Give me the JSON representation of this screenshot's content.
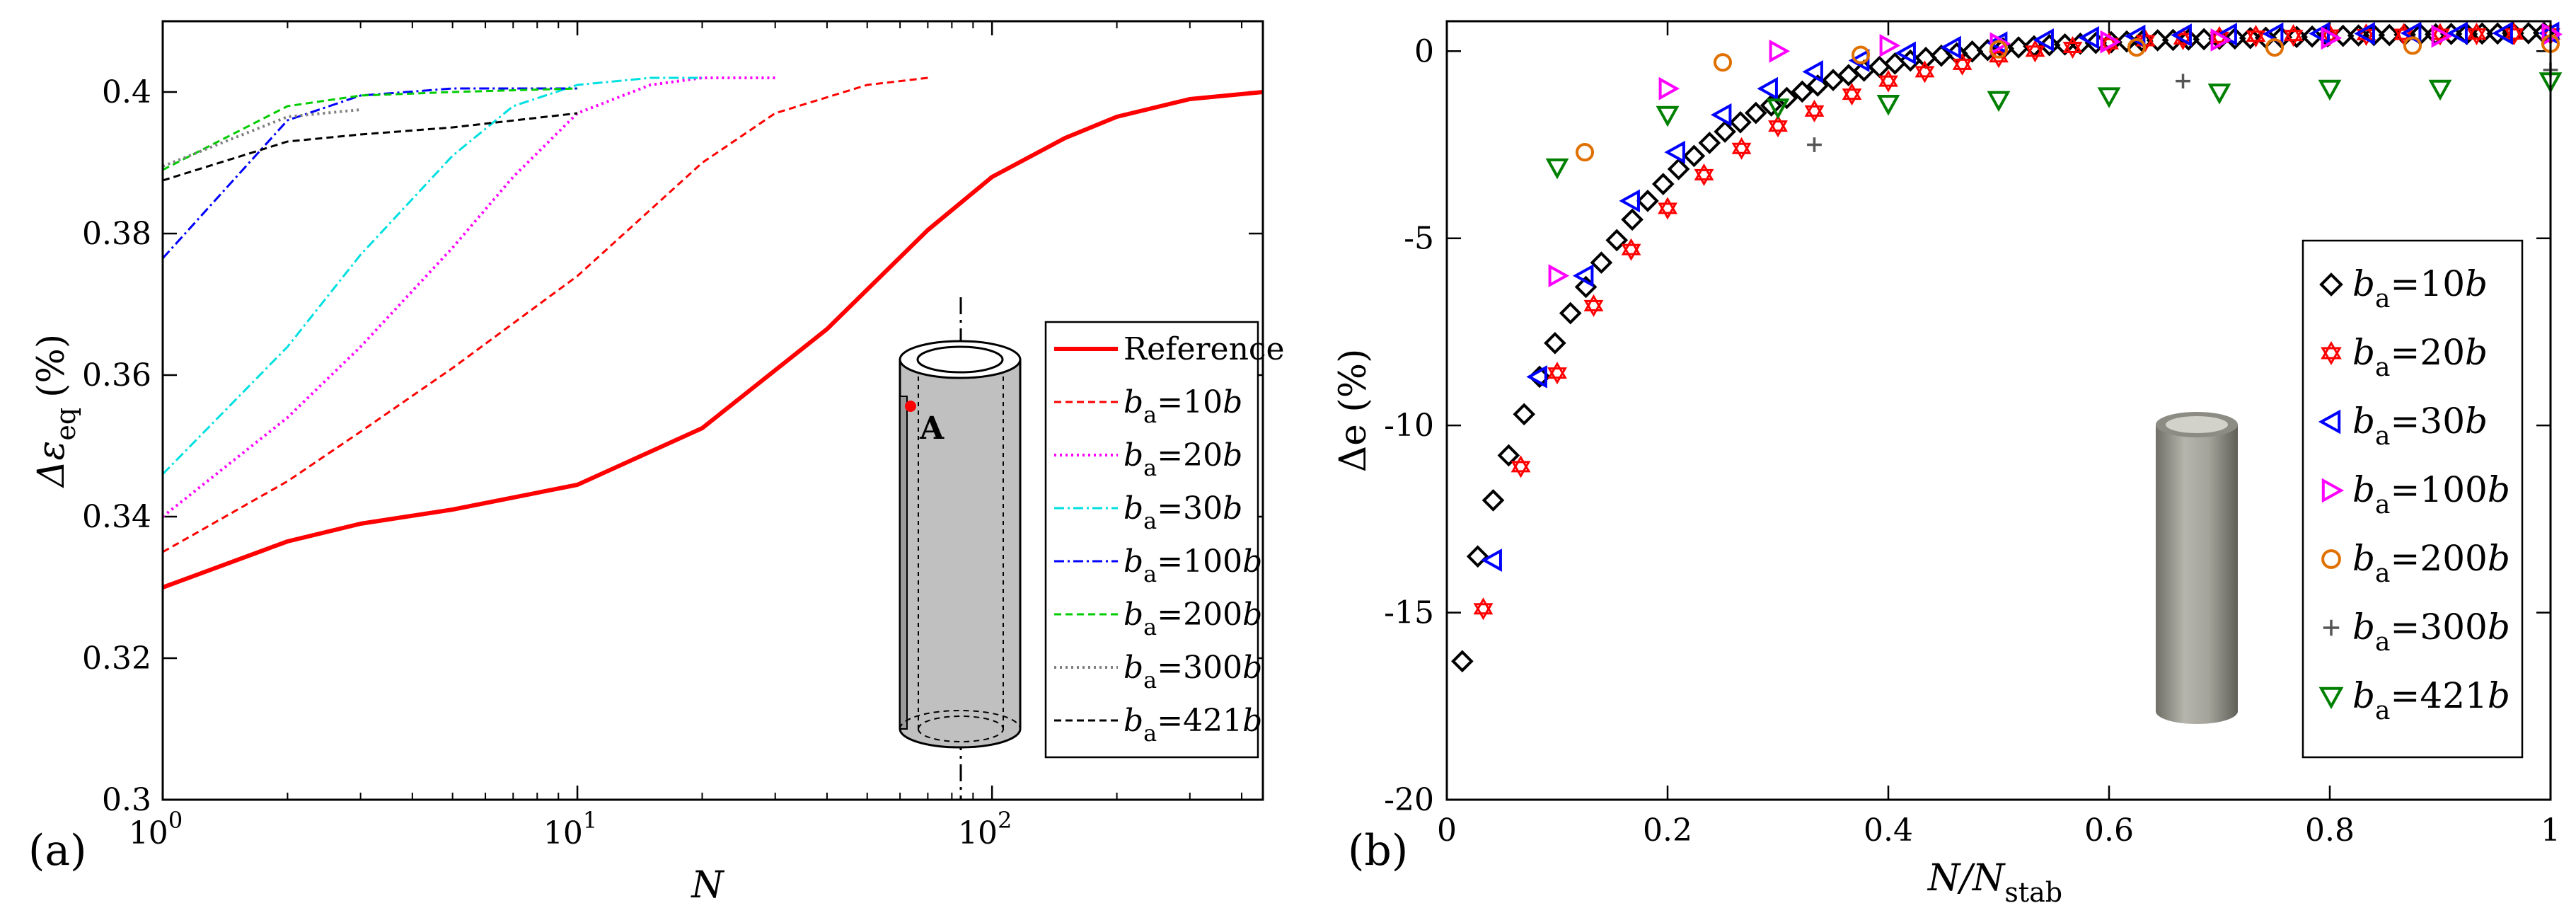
{
  "chart_data": [
    {
      "type": "line",
      "panel_label": "(a)",
      "xscale": "log",
      "xlim": [
        1,
        450
      ],
      "ylim": [
        0.3,
        0.41
      ],
      "xlabel": "N",
      "ylabel": "Δε",
      "ylabel_sub": "eq",
      "ylabel_unit": "(%)",
      "x_ticks": [
        {
          "value": 1,
          "base": "10",
          "exp": "0"
        },
        {
          "value": 10,
          "base": "10",
          "exp": "1"
        },
        {
          "value": 100,
          "base": "10",
          "exp": "2"
        }
      ],
      "y_ticks": [
        {
          "value": 0.3,
          "label": "0.3"
        },
        {
          "value": 0.32,
          "label": "0.32"
        },
        {
          "value": 0.34,
          "label": "0.34"
        },
        {
          "value": 0.36,
          "label": "0.36"
        },
        {
          "value": 0.38,
          "label": "0.38"
        },
        {
          "value": 0.4,
          "label": "0.4"
        }
      ],
      "legend_position": "bottom-right",
      "inset_point_label": "A",
      "series": [
        {
          "name": "Reference",
          "color": "#ff0000",
          "dash": "solid",
          "width": 6,
          "x": [
            1,
            2,
            3,
            5,
            10,
            20,
            40,
            70,
            100,
            150,
            200,
            300,
            450
          ],
          "y": [
            0.33,
            0.3365,
            0.339,
            0.341,
            0.3445,
            0.3525,
            0.3665,
            0.3805,
            0.388,
            0.3935,
            0.3965,
            0.399,
            0.4
          ]
        },
        {
          "name": "b_a=10b",
          "prefix": "b",
          "sub": "a",
          "suffix": "=10b",
          "color": "#ff0000",
          "dash": "10,6",
          "width": 3,
          "x": [
            1,
            2,
            3,
            5,
            10,
            20,
            30,
            50,
            70
          ],
          "y": [
            0.335,
            0.345,
            0.352,
            0.361,
            0.374,
            0.39,
            0.397,
            0.401,
            0.402
          ]
        },
        {
          "name": "b_a=20b",
          "prefix": "b",
          "sub": "a",
          "suffix": "=20b",
          "color": "#ff00ff",
          "dash": "3,5",
          "width": 4,
          "x": [
            1,
            2,
            3,
            5,
            7,
            10,
            15,
            20,
            30
          ],
          "y": [
            0.34,
            0.354,
            0.364,
            0.378,
            0.388,
            0.397,
            0.401,
            0.402,
            0.402
          ]
        },
        {
          "name": "b_a=30b",
          "prefix": "b",
          "sub": "a",
          "suffix": "=30b",
          "color": "#00e0e0",
          "dash": "14,5,3,5",
          "width": 3,
          "x": [
            1,
            2,
            3,
            5,
            7,
            10,
            15,
            20
          ],
          "y": [
            0.346,
            0.364,
            0.377,
            0.391,
            0.398,
            0.401,
            0.402,
            0.402
          ]
        },
        {
          "name": "b_a=100b",
          "prefix": "b",
          "sub": "a",
          "suffix": "=100b",
          "color": "#0000ff",
          "dash": "14,5,3,5",
          "width": 3,
          "x": [
            1,
            2,
            3,
            5,
            10
          ],
          "y": [
            0.3765,
            0.396,
            0.3995,
            0.4005,
            0.4005
          ]
        },
        {
          "name": "b_a=200b",
          "prefix": "b",
          "sub": "a",
          "suffix": "=200b",
          "color": "#00cc00",
          "dash": "10,6",
          "width": 3,
          "x": [
            1,
            2,
            3,
            5,
            10
          ],
          "y": [
            0.389,
            0.398,
            0.3995,
            0.4,
            0.4005
          ]
        },
        {
          "name": "b_a=300b",
          "prefix": "b",
          "sub": "a",
          "suffix": "=300b",
          "color": "#808080",
          "dash": "3,5",
          "width": 4,
          "x": [
            1,
            2,
            3
          ],
          "y": [
            0.3895,
            0.3965,
            0.3975
          ]
        },
        {
          "name": "b_a=421b",
          "prefix": "b",
          "sub": "a",
          "suffix": "=421b",
          "color": "#000000",
          "dash": "10,6",
          "width": 3,
          "x": [
            1,
            2,
            3,
            5,
            10
          ],
          "y": [
            0.3875,
            0.393,
            0.394,
            0.395,
            0.397
          ]
        }
      ]
    },
    {
      "type": "scatter",
      "panel_label": "(b)",
      "xlim": [
        0,
        1
      ],
      "ylim": [
        -20,
        0.8
      ],
      "xlabel": "N/N",
      "xlabel_sub": "stab",
      "ylabel": "Δe (%)",
      "x_ticks": [
        {
          "value": 0,
          "label": "0"
        },
        {
          "value": 0.2,
          "label": "0.2"
        },
        {
          "value": 0.4,
          "label": "0.4"
        },
        {
          "value": 0.6,
          "label": "0.6"
        },
        {
          "value": 0.8,
          "label": "0.8"
        },
        {
          "value": 1,
          "label": "1"
        }
      ],
      "y_ticks": [
        {
          "value": -20,
          "label": "-20"
        },
        {
          "value": -15,
          "label": "-15"
        },
        {
          "value": -10,
          "label": "-10"
        },
        {
          "value": -5,
          "label": "-5"
        },
        {
          "value": 0,
          "label": "0"
        }
      ],
      "legend_position": "right",
      "series": [
        {
          "name": "b_a=10b",
          "prefix": "b",
          "sub": "a",
          "suffix": "=10b",
          "marker": "diamond",
          "color": "#000000",
          "x": [
            0.014,
            0.028,
            0.042,
            0.056,
            0.07,
            0.084,
            0.098,
            0.112,
            0.126,
            0.14,
            0.154,
            0.168,
            0.182,
            0.196,
            0.21,
            0.224,
            0.238,
            0.252,
            0.266,
            0.28,
            0.294,
            0.308,
            0.322,
            0.336,
            0.35,
            0.364,
            0.378,
            0.392,
            0.406,
            0.42,
            0.434,
            0.448,
            0.462,
            0.476,
            0.49,
            0.504,
            0.518,
            0.532,
            0.546,
            0.56,
            0.574,
            0.588,
            0.602,
            0.616,
            0.63,
            0.644,
            0.658,
            0.672,
            0.686,
            0.7,
            0.714,
            0.728,
            0.742,
            0.756,
            0.77,
            0.784,
            0.798,
            0.812,
            0.826,
            0.84,
            0.854,
            0.868,
            0.882,
            0.896,
            0.91,
            0.924,
            0.938,
            0.952,
            0.966,
            0.98,
            0.994
          ],
          "y": [
            -16.3,
            -13.5,
            -12.0,
            -10.8,
            -9.7,
            -8.7,
            -7.8,
            -7.0,
            -6.3,
            -5.65,
            -5.05,
            -4.5,
            -4.0,
            -3.55,
            -3.15,
            -2.8,
            -2.45,
            -2.15,
            -1.9,
            -1.65,
            -1.45,
            -1.25,
            -1.08,
            -0.92,
            -0.77,
            -0.64,
            -0.52,
            -0.42,
            -0.33,
            -0.25,
            -0.18,
            -0.12,
            -0.06,
            -0.01,
            0.03,
            0.07,
            0.1,
            0.13,
            0.16,
            0.18,
            0.2,
            0.22,
            0.24,
            0.26,
            0.27,
            0.29,
            0.3,
            0.31,
            0.32,
            0.33,
            0.34,
            0.35,
            0.36,
            0.37,
            0.38,
            0.39,
            0.4,
            0.41,
            0.42,
            0.43,
            0.43,
            0.44,
            0.45,
            0.45,
            0.46,
            0.46,
            0.47,
            0.47,
            0.48,
            0.48,
            0.49
          ]
        },
        {
          "name": "b_a=20b",
          "prefix": "b",
          "sub": "a",
          "suffix": "=20b",
          "marker": "star",
          "color": "#ff0000",
          "x": [
            0.033,
            0.067,
            0.1,
            0.133,
            0.167,
            0.2,
            0.233,
            0.267,
            0.3,
            0.333,
            0.367,
            0.4,
            0.433,
            0.467,
            0.5,
            0.533,
            0.567,
            0.6,
            0.633,
            0.667,
            0.7,
            0.733,
            0.767,
            0.8,
            0.833,
            0.867,
            0.9,
            0.933,
            0.967,
            1.0
          ],
          "y": [
            -14.9,
            -11.1,
            -8.6,
            -6.8,
            -5.3,
            -4.2,
            -3.3,
            -2.6,
            -2.0,
            -1.6,
            -1.15,
            -0.8,
            -0.55,
            -0.35,
            -0.15,
            0.0,
            0.1,
            0.2,
            0.28,
            0.33,
            0.37,
            0.4,
            0.42,
            0.43,
            0.44,
            0.45,
            0.45,
            0.46,
            0.46,
            0.46
          ]
        },
        {
          "name": "b_a=30b",
          "prefix": "b",
          "sub": "a",
          "suffix": "=30b",
          "marker": "tri-left",
          "color": "#0000ff",
          "x": [
            0.042,
            0.083,
            0.125,
            0.167,
            0.208,
            0.25,
            0.292,
            0.333,
            0.375,
            0.417,
            0.458,
            0.5,
            0.542,
            0.583,
            0.625,
            0.667,
            0.708,
            0.75,
            0.792,
            0.833,
            0.875,
            0.917,
            0.958,
            1.0
          ],
          "y": [
            -13.6,
            -8.7,
            -6.0,
            -4.0,
            -2.7,
            -1.7,
            -1.0,
            -0.55,
            -0.25,
            -0.05,
            0.1,
            0.22,
            0.3,
            0.36,
            0.4,
            0.43,
            0.45,
            0.46,
            0.47,
            0.47,
            0.48,
            0.48,
            0.48,
            0.48
          ]
        },
        {
          "name": "b_a=100b",
          "prefix": "b",
          "sub": "a",
          "suffix": "=100b",
          "marker": "tri-right",
          "color": "#ff00ff",
          "x": [
            0.1,
            0.2,
            0.3,
            0.4,
            0.5,
            0.6,
            0.7,
            0.8,
            0.9,
            1.0
          ],
          "y": [
            -6.0,
            -1.0,
            0.0,
            0.15,
            0.2,
            0.25,
            0.3,
            0.35,
            0.4,
            0.45
          ]
        },
        {
          "name": "b_a=200b",
          "prefix": "b",
          "sub": "a",
          "suffix": "=200b",
          "marker": "circle",
          "color": "#e07000",
          "x": [
            0.125,
            0.25,
            0.375,
            0.5,
            0.625,
            0.75,
            0.875,
            1.0
          ],
          "y": [
            -2.7,
            -0.3,
            -0.1,
            0.05,
            0.1,
            0.1,
            0.15,
            0.2
          ]
        },
        {
          "name": "b_a=300b",
          "prefix": "b",
          "sub": "a",
          "suffix": "=300b",
          "marker": "plus",
          "color": "#555555",
          "x": [
            0.333,
            0.667,
            1.0
          ],
          "y": [
            -2.5,
            -0.8,
            -0.5
          ]
        },
        {
          "name": "b_a=421b",
          "prefix": "b",
          "sub": "a",
          "suffix": "=421b",
          "marker": "tri-down",
          "color": "#008000",
          "x": [
            0.1,
            0.2,
            0.3,
            0.4,
            0.5,
            0.6,
            0.7,
            0.8,
            0.9,
            1.0
          ],
          "y": [
            -3.1,
            -1.7,
            -1.5,
            -1.4,
            -1.3,
            -1.2,
            -1.1,
            -1.0,
            -1.0,
            -0.8
          ]
        }
      ]
    }
  ]
}
